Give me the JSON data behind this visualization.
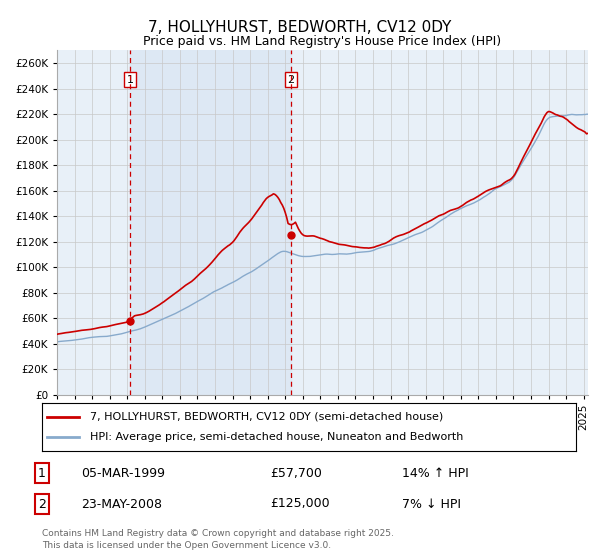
{
  "title": "7, HOLLYHURST, BEDWORTH, CV12 0DY",
  "subtitle": "Price paid vs. HM Land Registry's House Price Index (HPI)",
  "ylim": [
    0,
    270000
  ],
  "yticks": [
    0,
    20000,
    40000,
    60000,
    80000,
    100000,
    120000,
    140000,
    160000,
    180000,
    200000,
    220000,
    240000,
    260000
  ],
  "bg_color": "#e8f0f8",
  "grid_color": "#c8c8c8",
  "red_line_color": "#cc0000",
  "blue_line_color": "#88aacc",
  "vline_color": "#cc0000",
  "shade_color": "#dde8f4",
  "legend_label_red": "7, HOLLYHURST, BEDWORTH, CV12 0DY (semi-detached house)",
  "legend_label_blue": "HPI: Average price, semi-detached house, Nuneaton and Bedworth",
  "footnote": "Contains HM Land Registry data © Crown copyright and database right 2025.\nThis data is licensed under the Open Government Licence v3.0."
}
